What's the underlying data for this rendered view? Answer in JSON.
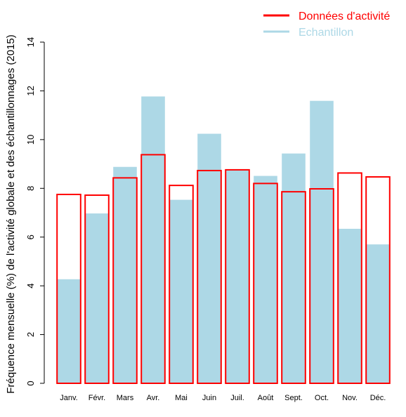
{
  "chart_data": {
    "type": "bar",
    "title": "",
    "xlabel": "",
    "ylabel": "Fréquence mensuelle (%) de l'activité globale et des échantillonnages (2015)",
    "ylim": [
      0,
      14
    ],
    "yticks": [
      0,
      2,
      4,
      6,
      8,
      10,
      12,
      14
    ],
    "categories": [
      "Janv.",
      "Févr.",
      "Mars",
      "Avr.",
      "Mai",
      "Juin",
      "Juil.",
      "Août",
      "Sept.",
      "Oct.",
      "Nov.",
      "Déc."
    ],
    "series": [
      {
        "name": "Données d'activité",
        "color": "#ff0000",
        "style": "outline",
        "values": [
          7.75,
          7.72,
          8.43,
          9.38,
          8.12,
          8.73,
          8.76,
          8.2,
          7.86,
          7.98,
          8.63,
          8.47
        ]
      },
      {
        "name": "Echantillon",
        "color": "#add8e6",
        "style": "filled",
        "values": [
          4.27,
          6.97,
          8.88,
          11.77,
          7.53,
          10.24,
          8.76,
          8.51,
          9.43,
          11.59,
          6.34,
          5.7
        ]
      }
    ],
    "legend_position": "top-right",
    "grid": false
  }
}
